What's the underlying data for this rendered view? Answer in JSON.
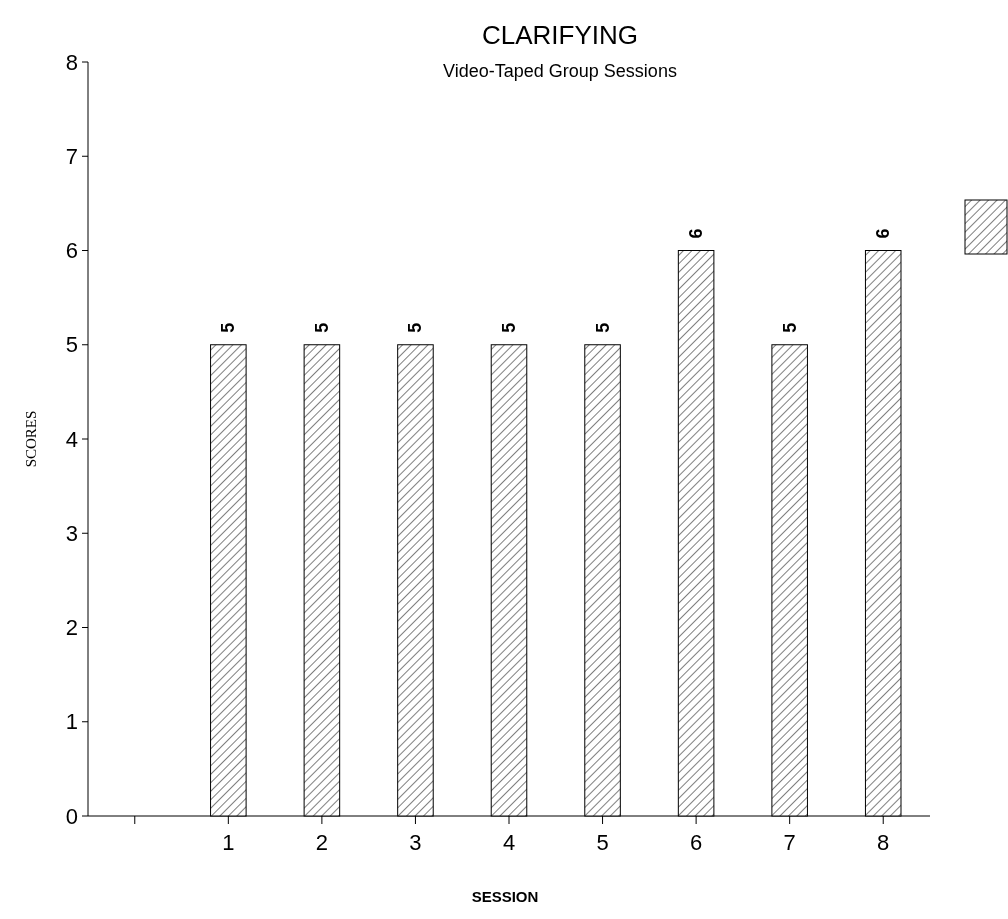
{
  "chart_data": {
    "type": "bar",
    "title": "CLARIFYING",
    "subtitle": "Video-Taped Group Sessions",
    "xlabel": "SESSION",
    "ylabel": "SCORES",
    "categories": [
      null,
      "1",
      "2",
      "3",
      "4",
      "5",
      "6",
      "7",
      "8"
    ],
    "series": [
      {
        "color": "#000000",
        "values": [
          null,
          5,
          5,
          5,
          5,
          5,
          6,
          5,
          6
        ]
      }
    ],
    "ylim": [
      0,
      8
    ],
    "yticks": [
      0,
      1,
      2,
      3,
      4,
      5,
      6,
      7,
      8
    ],
    "data_labels": true,
    "grid": false
  }
}
